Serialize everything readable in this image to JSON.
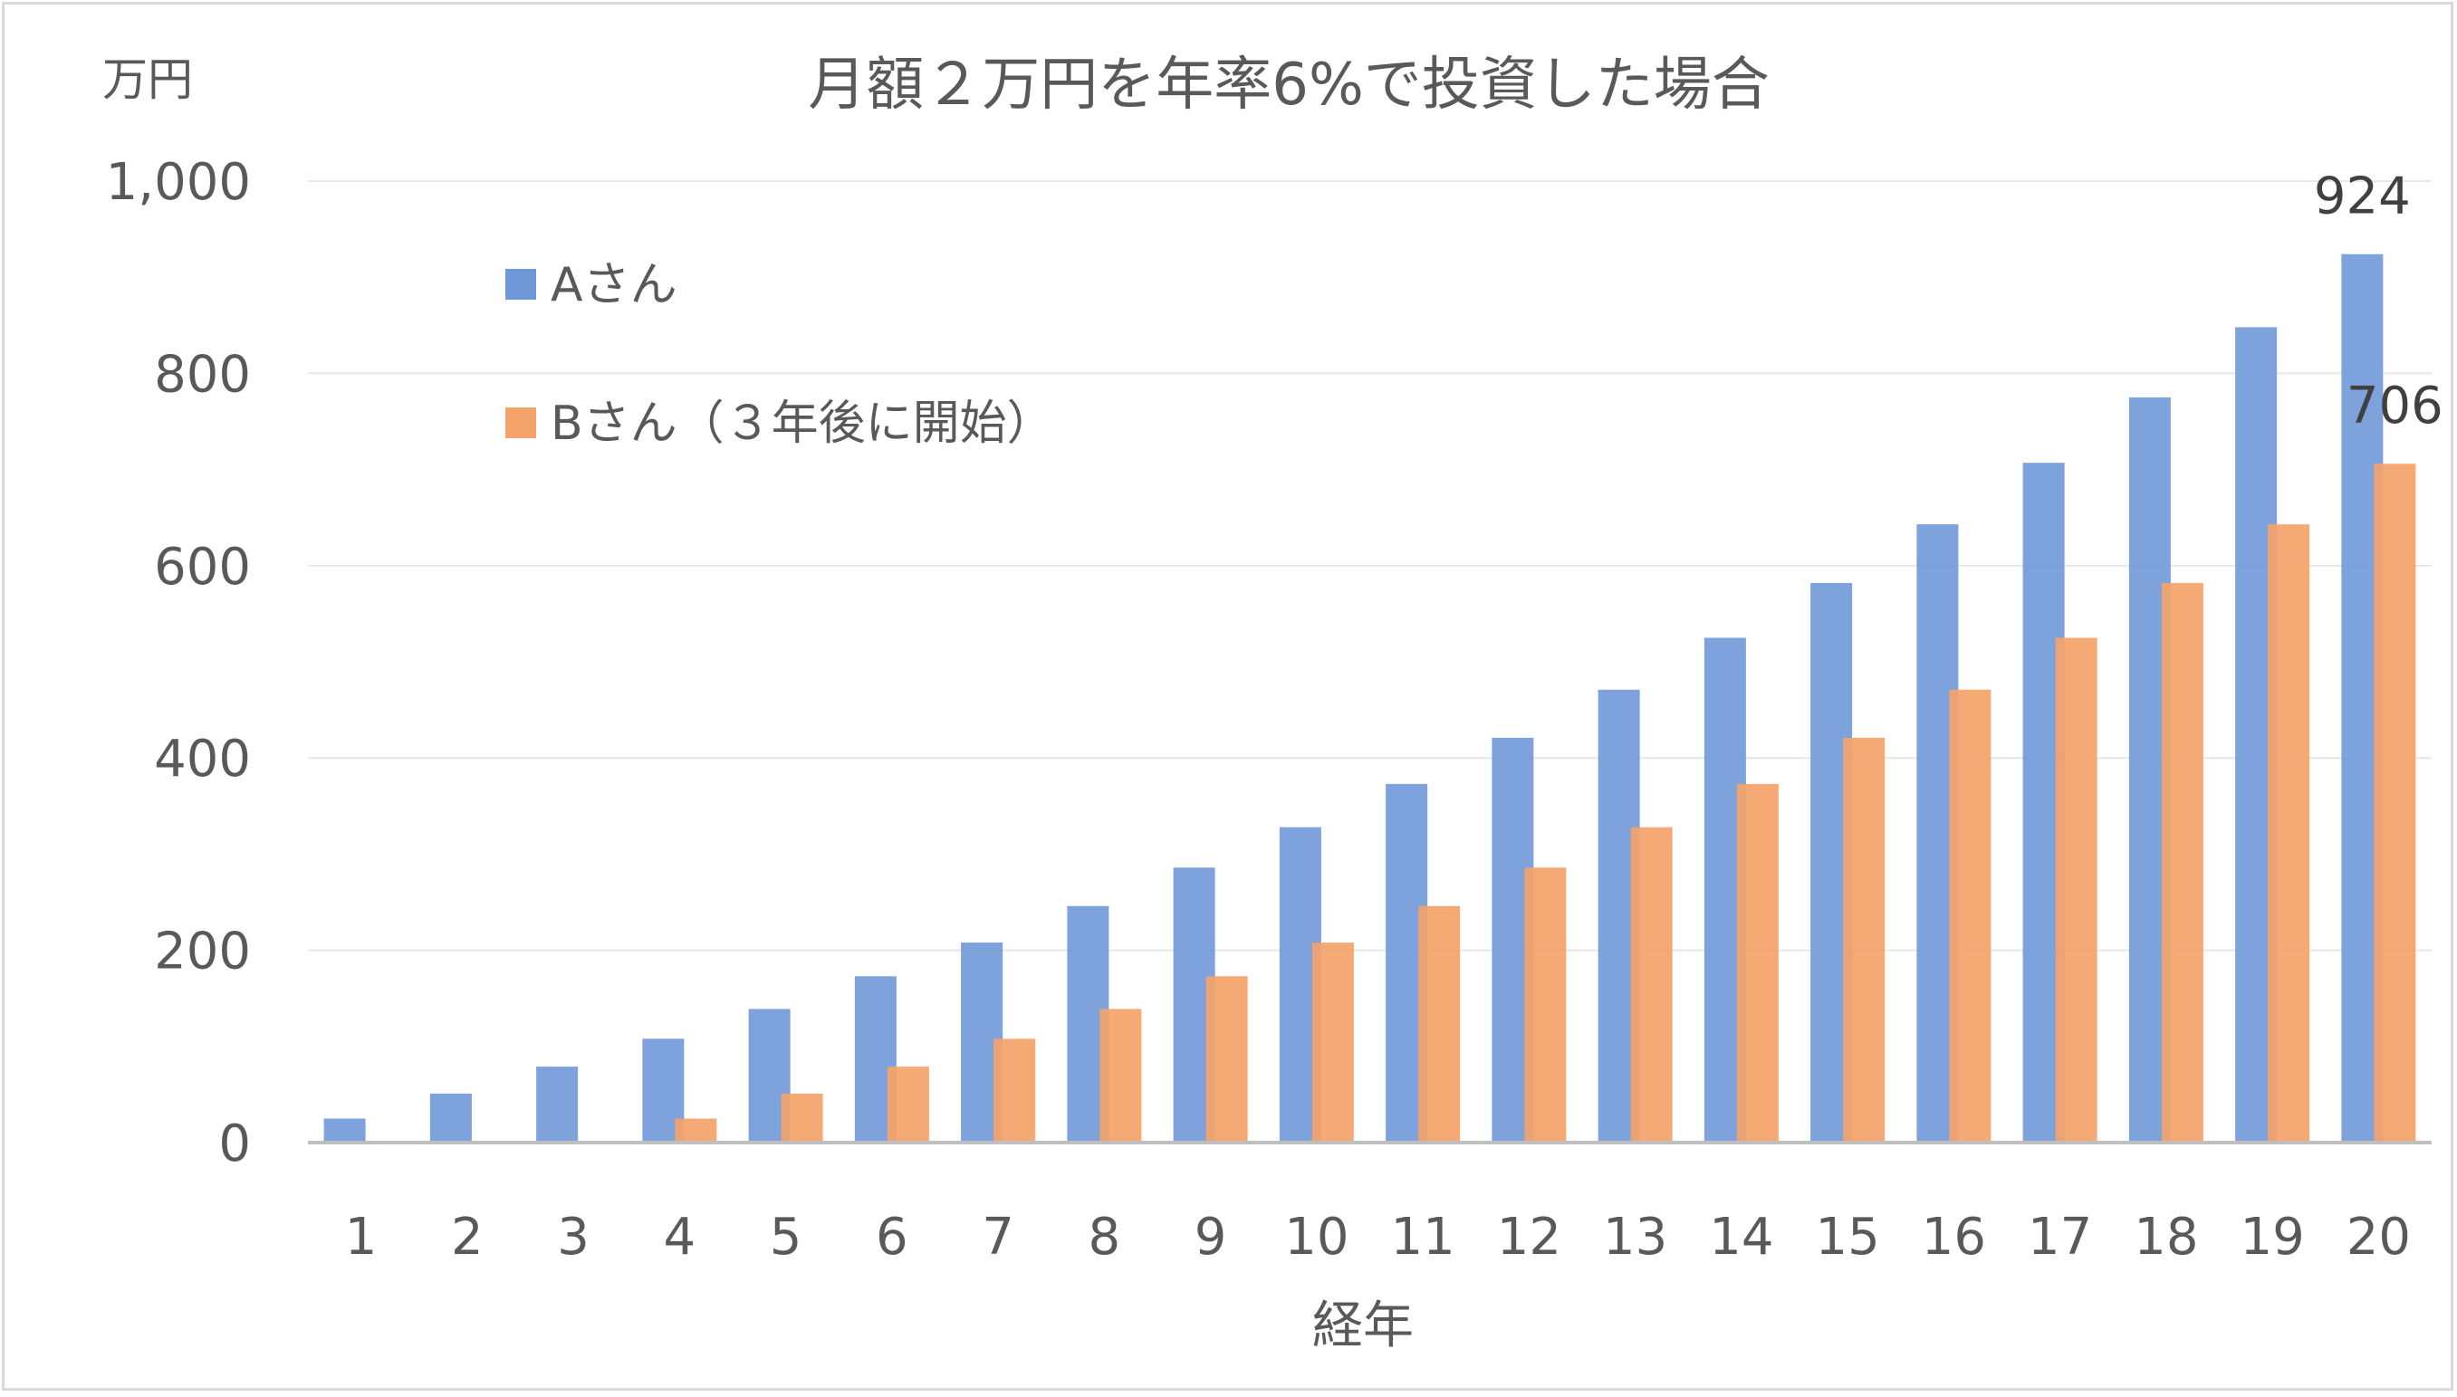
{
  "chart_data": {
    "type": "bar",
    "title": "月額２万円を年率6%で投資した場合",
    "ylabel": "万円",
    "xlabel": "経年",
    "ylim": [
      0,
      1000
    ],
    "yticks": [
      "0",
      "200",
      "400",
      "600",
      "800",
      "1,000"
    ],
    "ytick_values": [
      0,
      200,
      400,
      600,
      800,
      1000
    ],
    "categories": [
      "1",
      "2",
      "3",
      "4",
      "5",
      "6",
      "7",
      "8",
      "9",
      "10",
      "11",
      "12",
      "13",
      "14",
      "15",
      "16",
      "17",
      "18",
      "19",
      "20"
    ],
    "series": [
      {
        "name": "Aさん",
        "color": "#6f98d8",
        "values": [
          25,
          51,
          79,
          108,
          139,
          173,
          208,
          246,
          286,
          328,
          373,
          421,
          471,
          525,
          582,
          643,
          707,
          775,
          848,
          924
        ]
      },
      {
        "name": "Bさん（３年後に開始）",
        "color": "#f4a36a",
        "values": [
          0,
          0,
          0,
          25,
          51,
          79,
          108,
          139,
          173,
          208,
          246,
          286,
          328,
          373,
          421,
          471,
          525,
          582,
          643,
          706
        ]
      }
    ],
    "data_labels": [
      {
        "series": 0,
        "index": 19,
        "text": "924"
      },
      {
        "series": 1,
        "index": 19,
        "text": "706"
      }
    ],
    "legend_position": "upper-left",
    "grid": true
  }
}
